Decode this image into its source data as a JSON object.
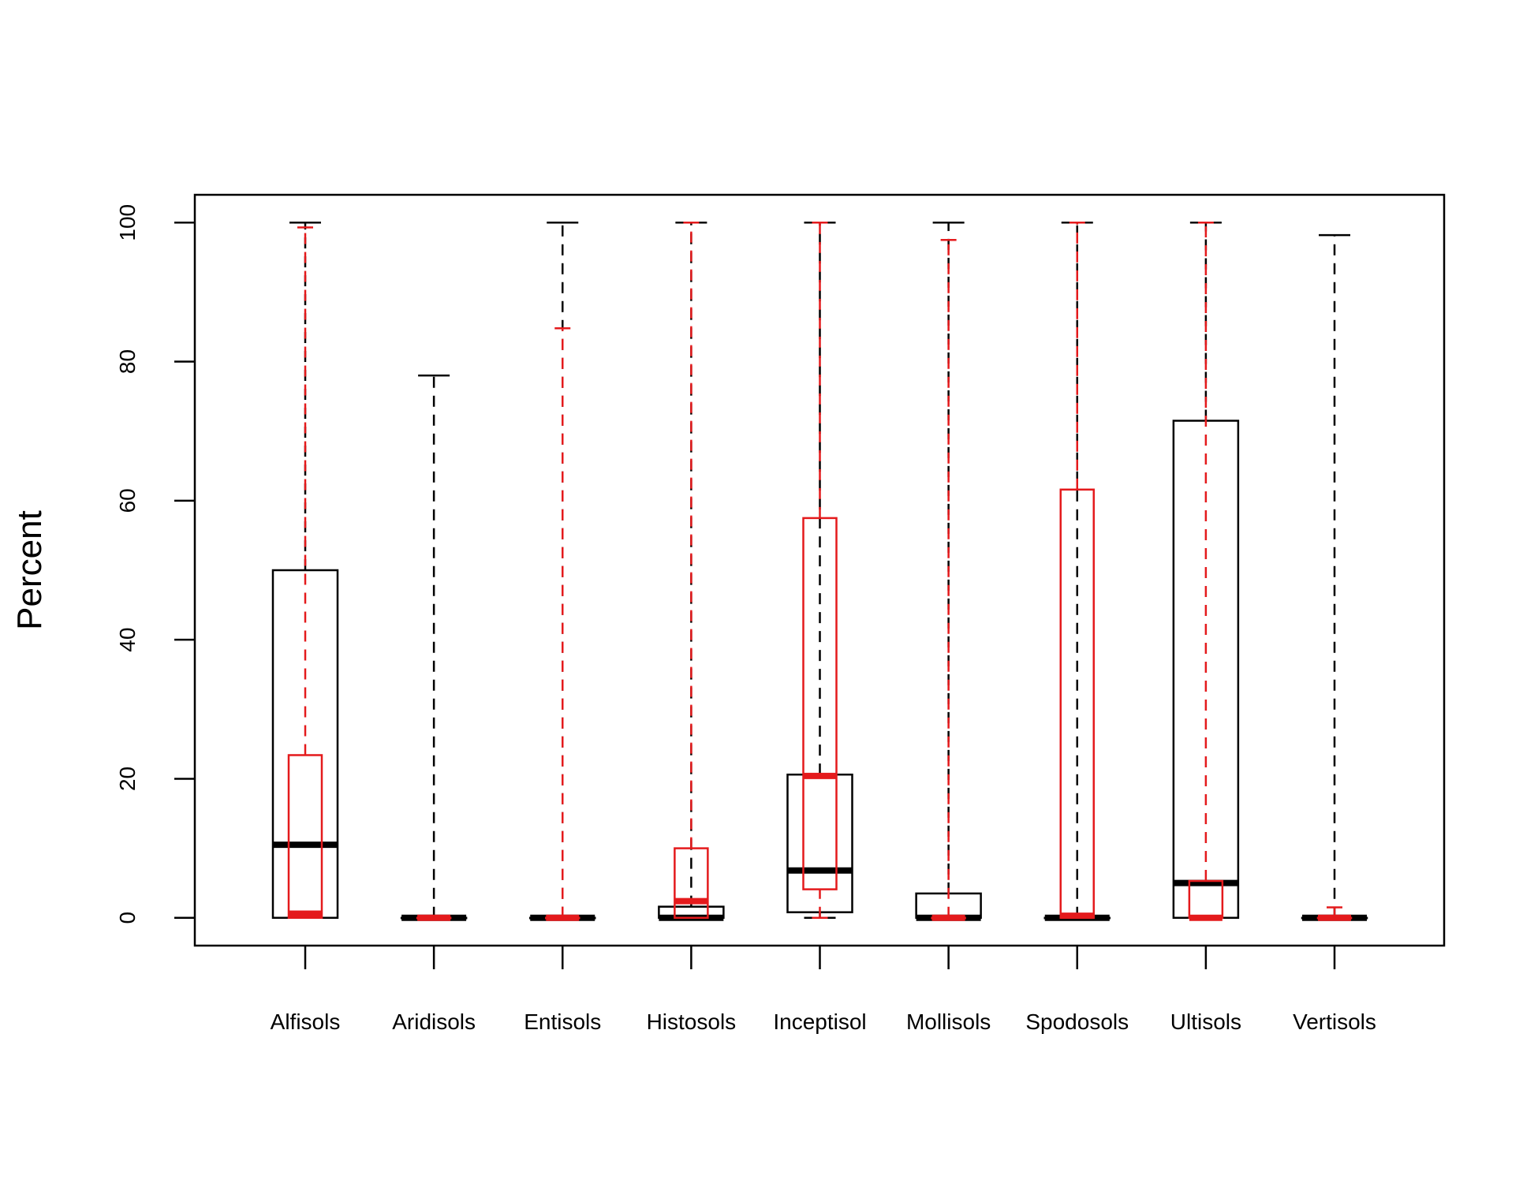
{
  "chart_data": {
    "type": "boxplot",
    "ylabel": "Percent",
    "ylim": [
      -4,
      104
    ],
    "yticks": [
      0,
      20,
      40,
      60,
      80,
      100
    ],
    "categories": [
      "Alfisols",
      "Aridisols",
      "Entisols",
      "Histosols",
      "Inceptisol",
      "Mollisols",
      "Spodosols",
      "Ultisols",
      "Vertisols"
    ],
    "series": [
      {
        "color": "#000000",
        "boxes": [
          {
            "min": 0,
            "q1": 0,
            "median": 10.5,
            "q3": 50,
            "max": 100
          },
          {
            "min": 0,
            "q1": 0,
            "median": 0,
            "q3": 0,
            "max": 78
          },
          {
            "min": 0,
            "q1": 0,
            "median": 0,
            "q3": 0,
            "max": 100
          },
          {
            "min": 0,
            "q1": 0,
            "median": 0,
            "q3": 1.6,
            "max": 100
          },
          {
            "min": 0,
            "q1": 0.8,
            "median": 6.8,
            "q3": 20.6,
            "max": 100
          },
          {
            "min": 0,
            "q1": 0,
            "median": 0,
            "q3": 3.5,
            "max": 100
          },
          {
            "min": 0,
            "q1": 0,
            "median": 0,
            "q3": 0,
            "max": 100
          },
          {
            "min": 0,
            "q1": 0,
            "median": 5,
            "q3": 71.5,
            "max": 100
          },
          {
            "min": 0,
            "q1": 0,
            "median": 0,
            "q3": 0,
            "max": 98.2
          }
        ]
      },
      {
        "color": "#e41a1c",
        "boxes": [
          {
            "min": 0,
            "q1": 0,
            "median": 0.6,
            "q3": 23.4,
            "max": 99.3
          },
          {
            "min": 0,
            "q1": 0,
            "median": 0,
            "q3": 0,
            "max": 0
          },
          {
            "min": 0,
            "q1": 0,
            "median": 0,
            "q3": 0,
            "max": 84.8
          },
          {
            "min": 0,
            "q1": 0,
            "median": 2.4,
            "q3": 10,
            "max": 100
          },
          {
            "min": 0,
            "q1": 4.1,
            "median": 20.4,
            "q3": 57.5,
            "max": 100
          },
          {
            "min": 0,
            "q1": 0,
            "median": 0,
            "q3": 0,
            "max": 97.5
          },
          {
            "min": 0,
            "q1": 0,
            "median": 0.3,
            "q3": 61.6,
            "max": 100
          },
          {
            "min": 0,
            "q1": 0,
            "median": 0,
            "q3": 5.3,
            "max": 100
          },
          {
            "min": 0,
            "q1": 0,
            "median": 0,
            "q3": 0,
            "max": 1.5
          }
        ]
      }
    ],
    "grid": false,
    "legend": "none"
  }
}
